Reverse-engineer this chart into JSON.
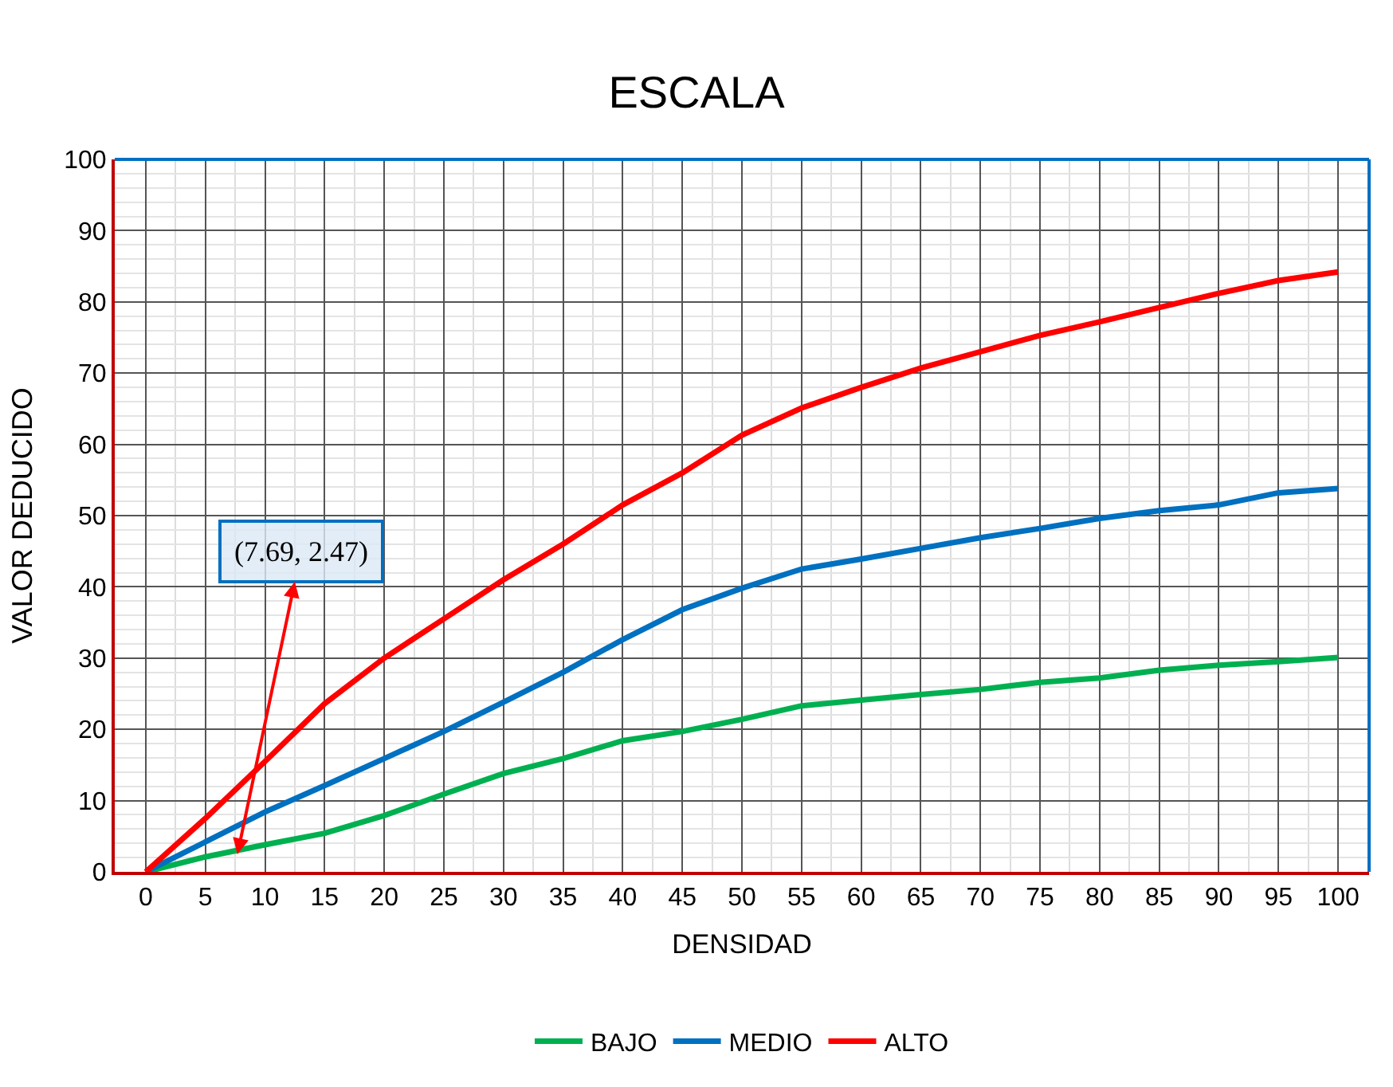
{
  "chart_data": {
    "type": "line",
    "title": "ESCALA",
    "xlabel": "DENSIDAD",
    "ylabel": "VALOR DEDUCIDO",
    "x": [
      0,
      5,
      10,
      15,
      20,
      25,
      30,
      35,
      40,
      45,
      50,
      55,
      60,
      65,
      70,
      75,
      80,
      85,
      90,
      95,
      100
    ],
    "series": [
      {
        "name": "BAJO",
        "color": "#00b050",
        "values": [
          0,
          2.1,
          3.8,
          5.4,
          7.9,
          10.9,
          13.8,
          15.9,
          18.4,
          19.7,
          21.4,
          23.3,
          24.1,
          24.9,
          25.6,
          26.6,
          27.2,
          28.3,
          29,
          29.5,
          30.1
        ]
      },
      {
        "name": "MEDIO",
        "color": "#0070c0",
        "values": [
          0,
          4.2,
          8.4,
          12.1,
          15.9,
          19.7,
          23.8,
          28,
          32.6,
          36.8,
          39.8,
          42.5,
          43.9,
          45.4,
          46.9,
          48.2,
          49.6,
          50.7,
          51.5,
          53.2,
          53.8
        ]
      },
      {
        "name": "ALTO",
        "color": "#ff0000",
        "values": [
          0,
          7.5,
          15.5,
          23.6,
          30,
          35.5,
          41,
          46,
          51.5,
          56,
          61.3,
          65.1,
          68,
          70.7,
          73,
          75.3,
          77.2,
          79.2,
          81.2,
          83,
          84.2
        ]
      }
    ],
    "xlim": [
      -2.6,
      102.6
    ],
    "ylim": [
      0,
      100
    ],
    "xticks": [
      0,
      5,
      10,
      15,
      20,
      25,
      30,
      35,
      40,
      45,
      50,
      55,
      60,
      65,
      70,
      75,
      80,
      85,
      90,
      95,
      100
    ],
    "yticks": [
      0,
      10,
      20,
      30,
      40,
      50,
      60,
      70,
      80,
      90,
      100
    ],
    "grid": true,
    "legend": "bottom",
    "marker": "none",
    "line_style": "solid",
    "annotations": [
      {
        "text": "(7.69, 2.47)",
        "x": 7.69,
        "y": 2.47
      }
    ]
  }
}
